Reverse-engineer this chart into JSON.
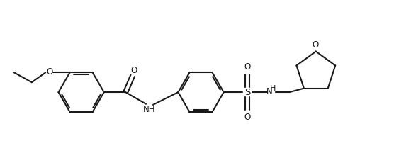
{
  "bg_color": "#ffffff",
  "line_color": "#1a1a1a",
  "line_width": 1.5,
  "fig_width": 5.56,
  "fig_height": 2.16,
  "dpi": 100,
  "xlim": [
    0,
    10
  ],
  "ylim": [
    0,
    3.9
  ]
}
